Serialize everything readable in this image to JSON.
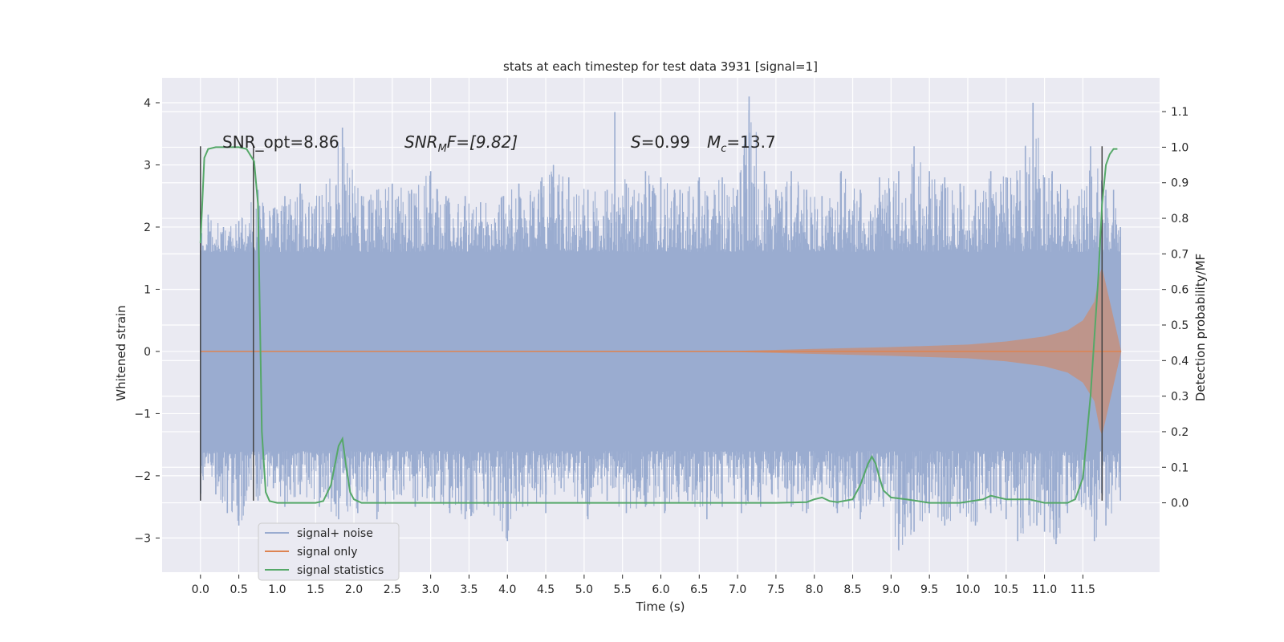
{
  "chart_data": {
    "type": "line",
    "title": "stats at each timestep for test data 3931 [signal=1]",
    "xlabel": "Time (s)",
    "ylabel": "Whitened strain",
    "ylabel_right": "Detection probability/MF",
    "xlim": [
      -0.5,
      12.5
    ],
    "ylim": [
      -3.55,
      4.4
    ],
    "ylim_right": [
      -0.195,
      1.195
    ],
    "x_ticks": [
      "0.0",
      "0.5",
      "1.0",
      "1.5",
      "2.0",
      "2.5",
      "3.0",
      "3.5",
      "4.0",
      "4.5",
      "5.0",
      "5.5",
      "6.0",
      "6.5",
      "7.0",
      "7.5",
      "8.0",
      "8.5",
      "9.0",
      "9.5",
      "10.0",
      "10.5",
      "11.0",
      "11.5"
    ],
    "y_ticks": [
      "4",
      "3",
      "2",
      "1",
      "0",
      "−1",
      "−2",
      "−3"
    ],
    "y_ticks_right": [
      "1.1",
      "1.0",
      "0.9",
      "0.8",
      "0.7",
      "0.6",
      "0.5",
      "0.4",
      "0.3",
      "0.2",
      "0.1",
      "0.0"
    ],
    "grid": true,
    "legend_position": "lower-left",
    "colors": {
      "background": "#eaeaf2",
      "grid": "#ffffff",
      "signal_noise": "#9aacd0",
      "signal_only": "#dd8452",
      "signal_statistics": "#55a868",
      "markers": "#444444"
    },
    "series": [
      {
        "name": "signal+ noise",
        "note_values": "band of noisy whitened strain, approx symmetric",
        "x_range": [
          0.0,
          11.99
        ],
        "core_band": [
          -1.6,
          1.6
        ],
        "peaks": [
          [
            0.0,
            1.9
          ],
          [
            0.1,
            2.2
          ],
          [
            0.3,
            2.0
          ],
          [
            0.5,
            2.1
          ],
          [
            0.75,
            2.6
          ],
          [
            0.95,
            2.3
          ],
          [
            1.1,
            2.5
          ],
          [
            1.3,
            2.7
          ],
          [
            1.55,
            2.5
          ],
          [
            1.85,
            3.6
          ],
          [
            2.1,
            2.5
          ],
          [
            2.3,
            2.6
          ],
          [
            2.5,
            2.7
          ],
          [
            2.75,
            2.6
          ],
          [
            3.0,
            2.9
          ],
          [
            3.2,
            2.5
          ],
          [
            3.45,
            2.5
          ],
          [
            3.65,
            2.4
          ],
          [
            3.95,
            2.5
          ],
          [
            4.15,
            2.7
          ],
          [
            4.45,
            2.8
          ],
          [
            4.6,
            3.0
          ],
          [
            4.8,
            2.8
          ],
          [
            5.05,
            2.6
          ],
          [
            5.3,
            2.6
          ],
          [
            5.4,
            3.85
          ],
          [
            5.55,
            2.7
          ],
          [
            5.8,
            2.9
          ],
          [
            6.0,
            2.8
          ],
          [
            6.25,
            2.6
          ],
          [
            6.5,
            2.8
          ],
          [
            6.8,
            2.8
          ],
          [
            7.0,
            2.6
          ],
          [
            7.15,
            4.1
          ],
          [
            7.35,
            2.9
          ],
          [
            7.5,
            2.6
          ],
          [
            7.7,
            2.9
          ],
          [
            7.9,
            2.6
          ],
          [
            8.1,
            2.5
          ],
          [
            8.35,
            2.9
          ],
          [
            8.6,
            2.6
          ],
          [
            8.85,
            2.8
          ],
          [
            9.1,
            2.9
          ],
          [
            9.3,
            3.3
          ],
          [
            9.5,
            2.9
          ],
          [
            9.7,
            2.8
          ],
          [
            9.9,
            2.7
          ],
          [
            10.1,
            2.6
          ],
          [
            10.3,
            2.9
          ],
          [
            10.5,
            2.8
          ],
          [
            10.75,
            3.3
          ],
          [
            10.85,
            4.0
          ],
          [
            11.0,
            2.8
          ],
          [
            11.1,
            2.9
          ],
          [
            11.3,
            2.6
          ],
          [
            11.45,
            2.5
          ],
          [
            11.6,
            3.3
          ],
          [
            11.8,
            2.6
          ],
          [
            11.9,
            2.6
          ],
          [
            11.99,
            2.0
          ]
        ],
        "troughs": [
          [
            0.0,
            -2.4
          ],
          [
            0.1,
            -1.8
          ],
          [
            0.2,
            -2.3
          ],
          [
            0.35,
            -2.6
          ],
          [
            0.5,
            -2.8
          ],
          [
            0.75,
            -2.4
          ],
          [
            0.95,
            -2.2
          ],
          [
            1.1,
            -2.5
          ],
          [
            1.3,
            -2.3
          ],
          [
            1.55,
            -2.5
          ],
          [
            1.8,
            -2.7
          ],
          [
            2.05,
            -2.6
          ],
          [
            2.3,
            -2.7
          ],
          [
            2.6,
            -2.3
          ],
          [
            2.8,
            -2.5
          ],
          [
            3.05,
            -2.4
          ],
          [
            3.25,
            -2.6
          ],
          [
            3.45,
            -2.7
          ],
          [
            3.75,
            -2.5
          ],
          [
            4.0,
            -3.05
          ],
          [
            4.2,
            -2.5
          ],
          [
            4.5,
            -2.6
          ],
          [
            4.7,
            -2.2
          ],
          [
            5.05,
            -2.7
          ],
          [
            5.3,
            -2.4
          ],
          [
            5.55,
            -2.6
          ],
          [
            5.8,
            -2.5
          ],
          [
            6.05,
            -2.6
          ],
          [
            6.35,
            -2.4
          ],
          [
            6.6,
            -2.7
          ],
          [
            6.8,
            -2.5
          ],
          [
            7.05,
            -2.6
          ],
          [
            7.3,
            -2.5
          ],
          [
            7.45,
            -2.3
          ],
          [
            7.7,
            -2.5
          ],
          [
            7.9,
            -2.6
          ],
          [
            8.1,
            -2.3
          ],
          [
            8.3,
            -2.6
          ],
          [
            8.6,
            -2.7
          ],
          [
            8.9,
            -2.5
          ],
          [
            9.1,
            -3.2
          ],
          [
            9.3,
            -2.9
          ],
          [
            9.5,
            -2.6
          ],
          [
            9.7,
            -2.8
          ],
          [
            9.9,
            -2.6
          ],
          [
            10.1,
            -2.8
          ],
          [
            10.3,
            -2.6
          ],
          [
            10.5,
            -2.7
          ],
          [
            10.65,
            -3.05
          ],
          [
            10.9,
            -2.8
          ],
          [
            11.0,
            -2.9
          ],
          [
            11.15,
            -3.1
          ],
          [
            11.3,
            -2.6
          ],
          [
            11.45,
            -2.4
          ],
          [
            11.65,
            -3.05
          ],
          [
            11.8,
            -2.8
          ],
          [
            11.99,
            -2.4
          ]
        ]
      },
      {
        "name": "signal only",
        "note_values": "chirp envelope (whitened strain amplitude)",
        "x": [
          0.0,
          7.0,
          8.0,
          9.0,
          10.0,
          10.5,
          11.0,
          11.3,
          11.5,
          11.65,
          11.72,
          11.75,
          12.0
        ],
        "amplitude": [
          0.005,
          0.01,
          0.04,
          0.07,
          0.11,
          0.16,
          0.24,
          0.34,
          0.5,
          0.8,
          1.25,
          1.35,
          0.0
        ]
      },
      {
        "name": "signal statistics",
        "note_values": "detection probability (right axis)",
        "x": [
          0.0,
          0.05,
          0.1,
          0.2,
          0.3,
          0.5,
          0.6,
          0.7,
          0.75,
          0.8,
          0.85,
          0.9,
          1.0,
          1.5,
          1.6,
          1.7,
          1.8,
          1.85,
          1.9,
          1.95,
          2.0,
          2.1,
          2.5,
          5.0,
          7.5,
          7.9,
          8.0,
          8.1,
          8.2,
          8.3,
          8.5,
          8.6,
          8.7,
          8.75,
          8.8,
          8.85,
          8.9,
          9.0,
          9.2,
          9.5,
          9.9,
          10.2,
          10.3,
          10.5,
          10.8,
          11.0,
          11.3,
          11.4,
          11.5,
          11.6,
          11.7,
          11.75,
          11.8,
          11.85,
          11.9,
          11.95
        ],
        "values": [
          0.73,
          0.97,
          0.995,
          1.0,
          1.0,
          1.0,
          0.995,
          0.96,
          0.84,
          0.2,
          0.03,
          0.005,
          0.0,
          0.0,
          0.005,
          0.05,
          0.16,
          0.18,
          0.1,
          0.03,
          0.01,
          0.0,
          0.0,
          0.0,
          0.0,
          0.002,
          0.01,
          0.015,
          0.005,
          0.002,
          0.01,
          0.05,
          0.11,
          0.13,
          0.11,
          0.07,
          0.035,
          0.015,
          0.01,
          0.0,
          0.0,
          0.01,
          0.02,
          0.01,
          0.01,
          0.0,
          0.0,
          0.01,
          0.07,
          0.3,
          0.63,
          0.84,
          0.95,
          0.98,
          0.995,
          0.995
        ]
      }
    ],
    "vertical_markers": [
      {
        "x": 0.0,
        "y_range": [
          -2.4,
          3.3
        ]
      },
      {
        "x": 0.69,
        "y_range": [
          -2.4,
          3.3
        ]
      },
      {
        "x": 11.75,
        "y_range": [
          -2.4,
          3.3
        ]
      }
    ],
    "annotations": [
      {
        "id": "snr_opt",
        "text": "SNR_opt=8.86"
      },
      {
        "id": "snr_mf",
        "base": "SNR",
        "sub": "M",
        "tail": "F=[9.82]"
      },
      {
        "id": "stat",
        "var": "S",
        "tail": "=0.99"
      },
      {
        "id": "mc",
        "var": "M",
        "sub": "c",
        "tail": "=13.7"
      }
    ]
  }
}
